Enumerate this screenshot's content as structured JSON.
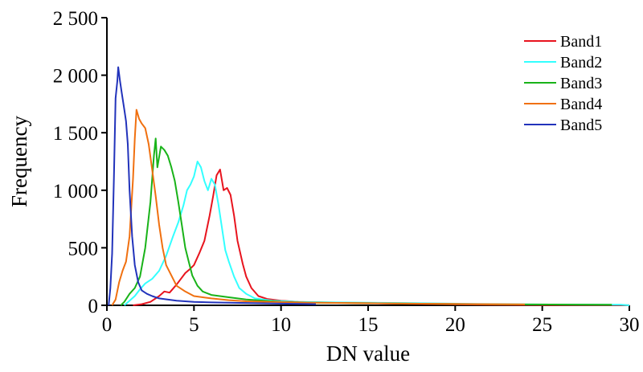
{
  "chart_data": {
    "type": "line",
    "title": "",
    "xlabel": "DN value",
    "ylabel": "Frequency",
    "xlim": [
      0,
      30
    ],
    "ylim": [
      0,
      2500
    ],
    "x_ticks": [
      0,
      5,
      10,
      15,
      20,
      25,
      30
    ],
    "x_tick_labels": [
      "0",
      "5",
      "10",
      "15",
      "20",
      "25",
      "30"
    ],
    "y_ticks": [
      0,
      500,
      1000,
      1500,
      2000,
      2500
    ],
    "y_tick_labels": [
      "0",
      "500",
      "1 000",
      "1 500",
      "2 000",
      "2 500"
    ],
    "grid": false,
    "legend_position": "top-right",
    "series": [
      {
        "name": "Band1",
        "color": "#e8141e",
        "points": [
          [
            1.5,
            0
          ],
          [
            2.0,
            10
          ],
          [
            2.5,
            30
          ],
          [
            3.0,
            80
          ],
          [
            3.3,
            120
          ],
          [
            3.6,
            110
          ],
          [
            4.0,
            180
          ],
          [
            4.5,
            280
          ],
          [
            4.8,
            320
          ],
          [
            5.0,
            350
          ],
          [
            5.3,
            450
          ],
          [
            5.6,
            560
          ],
          [
            5.9,
            780
          ],
          [
            6.1,
            950
          ],
          [
            6.3,
            1130
          ],
          [
            6.5,
            1180
          ],
          [
            6.7,
            1000
          ],
          [
            6.9,
            1020
          ],
          [
            7.1,
            960
          ],
          [
            7.3,
            780
          ],
          [
            7.5,
            560
          ],
          [
            7.8,
            360
          ],
          [
            8.0,
            250
          ],
          [
            8.3,
            150
          ],
          [
            8.7,
            80
          ],
          [
            9.2,
            55
          ],
          [
            10,
            40
          ],
          [
            11,
            30
          ],
          [
            13,
            22
          ],
          [
            15,
            18
          ],
          [
            18,
            12
          ],
          [
            20,
            8
          ],
          [
            22,
            5
          ],
          [
            25,
            3
          ],
          [
            28,
            2
          ],
          [
            30,
            1
          ]
        ]
      },
      {
        "name": "Band2",
        "color": "#33ffff",
        "points": [
          [
            1.0,
            0
          ],
          [
            1.6,
            80
          ],
          [
            1.9,
            140
          ],
          [
            2.2,
            190
          ],
          [
            2.6,
            230
          ],
          [
            3.0,
            300
          ],
          [
            3.4,
            430
          ],
          [
            3.8,
            600
          ],
          [
            4.1,
            720
          ],
          [
            4.4,
            870
          ],
          [
            4.6,
            1000
          ],
          [
            4.8,
            1050
          ],
          [
            5.0,
            1120
          ],
          [
            5.2,
            1250
          ],
          [
            5.4,
            1200
          ],
          [
            5.6,
            1080
          ],
          [
            5.8,
            1000
          ],
          [
            6.0,
            1100
          ],
          [
            6.2,
            1050
          ],
          [
            6.4,
            880
          ],
          [
            6.6,
            680
          ],
          [
            6.8,
            480
          ],
          [
            7.0,
            380
          ],
          [
            7.3,
            250
          ],
          [
            7.6,
            150
          ],
          [
            8.0,
            100
          ],
          [
            8.5,
            60
          ],
          [
            9.5,
            40
          ],
          [
            11,
            30
          ],
          [
            13,
            25
          ],
          [
            15,
            22
          ],
          [
            18,
            18
          ],
          [
            21,
            12
          ],
          [
            24,
            8
          ],
          [
            27,
            6
          ],
          [
            29.5,
            5
          ],
          [
            30,
            0
          ]
        ]
      },
      {
        "name": "Band3",
        "color": "#19b319",
        "points": [
          [
            0.8,
            0
          ],
          [
            1.0,
            30
          ],
          [
            1.3,
            100
          ],
          [
            1.6,
            150
          ],
          [
            1.9,
            250
          ],
          [
            2.2,
            500
          ],
          [
            2.5,
            900
          ],
          [
            2.7,
            1300
          ],
          [
            2.8,
            1450
          ],
          [
            2.9,
            1200
          ],
          [
            3.1,
            1380
          ],
          [
            3.3,
            1350
          ],
          [
            3.5,
            1300
          ],
          [
            3.7,
            1200
          ],
          [
            3.9,
            1080
          ],
          [
            4.1,
            900
          ],
          [
            4.3,
            700
          ],
          [
            4.5,
            500
          ],
          [
            4.7,
            380
          ],
          [
            4.9,
            260
          ],
          [
            5.2,
            170
          ],
          [
            5.5,
            120
          ],
          [
            6.0,
            90
          ],
          [
            7.0,
            70
          ],
          [
            8.0,
            50
          ],
          [
            9.0,
            40
          ],
          [
            10,
            30
          ],
          [
            12,
            22
          ],
          [
            15,
            18
          ],
          [
            18,
            14
          ],
          [
            21,
            10
          ],
          [
            24,
            8
          ],
          [
            27,
            6
          ],
          [
            29,
            5
          ]
        ]
      },
      {
        "name": "Band4",
        "color": "#f07010",
        "points": [
          [
            0.3,
            0
          ],
          [
            0.5,
            50
          ],
          [
            0.7,
            200
          ],
          [
            0.9,
            300
          ],
          [
            1.1,
            380
          ],
          [
            1.3,
            600
          ],
          [
            1.5,
            1100
          ],
          [
            1.6,
            1450
          ],
          [
            1.7,
            1700
          ],
          [
            1.85,
            1620
          ],
          [
            2.0,
            1580
          ],
          [
            2.2,
            1540
          ],
          [
            2.4,
            1400
          ],
          [
            2.6,
            1180
          ],
          [
            2.8,
            950
          ],
          [
            3.0,
            700
          ],
          [
            3.2,
            500
          ],
          [
            3.4,
            350
          ],
          [
            3.7,
            260
          ],
          [
            4.0,
            170
          ],
          [
            4.5,
            120
          ],
          [
            5.0,
            80
          ],
          [
            6.0,
            60
          ],
          [
            7.0,
            45
          ],
          [
            8.0,
            35
          ],
          [
            10,
            28
          ],
          [
            12,
            22
          ],
          [
            15,
            18
          ],
          [
            18,
            14
          ],
          [
            20,
            12
          ],
          [
            22,
            10
          ],
          [
            24,
            8
          ]
        ]
      },
      {
        "name": "Band5",
        "color": "#2233bb",
        "points": [
          [
            0.1,
            0
          ],
          [
            0.2,
            150
          ],
          [
            0.3,
            450
          ],
          [
            0.4,
            1100
          ],
          [
            0.5,
            1800
          ],
          [
            0.6,
            1950
          ],
          [
            0.65,
            2070
          ],
          [
            0.75,
            1950
          ],
          [
            0.85,
            1850
          ],
          [
            1.0,
            1700
          ],
          [
            1.1,
            1600
          ],
          [
            1.2,
            1400
          ],
          [
            1.3,
            1000
          ],
          [
            1.45,
            600
          ],
          [
            1.6,
            350
          ],
          [
            1.8,
            200
          ],
          [
            2.0,
            130
          ],
          [
            2.3,
            100
          ],
          [
            2.6,
            80
          ],
          [
            3.0,
            60
          ],
          [
            4.0,
            40
          ],
          [
            5.0,
            30
          ],
          [
            6.0,
            25
          ],
          [
            8.0,
            20
          ],
          [
            10,
            15
          ],
          [
            12,
            10
          ]
        ]
      }
    ]
  }
}
